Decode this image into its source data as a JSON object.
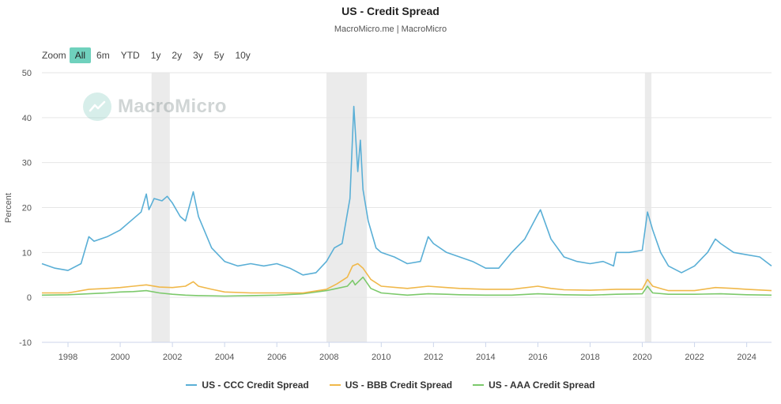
{
  "header": {
    "title": "US - Credit Spread",
    "subtitle": "MacroMicro.me | MacroMicro"
  },
  "zoom": {
    "label": "Zoom",
    "buttons": [
      "All",
      "6m",
      "YTD",
      "1y",
      "2y",
      "3y",
      "5y",
      "10y"
    ],
    "active": "All"
  },
  "watermark": {
    "text": "MacroMicro"
  },
  "colors": {
    "ccc": "#5aafd6",
    "bbb": "#f0b84a",
    "aaa": "#7cc96b",
    "shade": "#ebebeb",
    "accent": "#6fd1bd"
  },
  "chart_data": {
    "type": "line",
    "title": "US - Credit Spread",
    "ylabel": "Percent",
    "ylim": [
      -10,
      50
    ],
    "yticks": [
      -10,
      0,
      10,
      20,
      30,
      40,
      50
    ],
    "xlim": [
      1997,
      2024.95
    ],
    "xticks": [
      "1998",
      "2000",
      "2002",
      "2004",
      "2006",
      "2008",
      "2010",
      "2012",
      "2014",
      "2016",
      "2018",
      "2020",
      "2022",
      "2024"
    ],
    "grid": true,
    "legend_position": "bottom",
    "recession_bands": [
      [
        2001.2,
        2001.9
      ],
      [
        2007.9,
        2009.45
      ],
      [
        2020.1,
        2020.35
      ]
    ],
    "series": [
      {
        "name": "US - CCC Credit Spread",
        "x": [
          1997.0,
          1997.5,
          1998.0,
          1998.5,
          1998.8,
          1999.0,
          1999.5,
          2000.0,
          2000.5,
          2000.8,
          2001.0,
          2001.1,
          2001.3,
          2001.6,
          2001.8,
          2002.0,
          2002.3,
          2002.5,
          2002.8,
          2003.0,
          2003.5,
          2004.0,
          2004.5,
          2005.0,
          2005.5,
          2006.0,
          2006.5,
          2007.0,
          2007.5,
          2007.9,
          2008.2,
          2008.5,
          2008.8,
          2008.95,
          2009.1,
          2009.2,
          2009.3,
          2009.5,
          2009.8,
          2010.0,
          2010.5,
          2011.0,
          2011.5,
          2011.8,
          2012.0,
          2012.5,
          2013.0,
          2013.5,
          2014.0,
          2014.5,
          2015.0,
          2015.5,
          2016.0,
          2016.1,
          2016.5,
          2017.0,
          2017.5,
          2018.0,
          2018.5,
          2018.9,
          2019.0,
          2019.5,
          2020.0,
          2020.2,
          2020.4,
          2020.7,
          2021.0,
          2021.5,
          2022.0,
          2022.5,
          2022.8,
          2023.0,
          2023.5,
          2024.0,
          2024.5,
          2024.95
        ],
        "values": [
          7.5,
          6.5,
          6.0,
          7.5,
          13.5,
          12.5,
          13.5,
          15.0,
          17.5,
          19.0,
          23.0,
          19.5,
          22.0,
          21.5,
          22.5,
          21.0,
          18.0,
          17.0,
          23.5,
          18.0,
          11.0,
          8.0,
          7.0,
          7.5,
          7.0,
          7.5,
          6.5,
          5.0,
          5.5,
          8.0,
          11.0,
          12.0,
          22.0,
          42.5,
          28.0,
          35.0,
          24.0,
          17.0,
          11.0,
          10.0,
          9.0,
          7.5,
          8.0,
          13.5,
          12.0,
          10.0,
          9.0,
          8.0,
          6.5,
          6.5,
          10.0,
          13.0,
          18.5,
          19.5,
          13.0,
          9.0,
          8.0,
          7.5,
          8.0,
          7.0,
          10.0,
          10.0,
          10.5,
          19.0,
          15.0,
          10.0,
          7.0,
          5.5,
          7.0,
          10.0,
          13.0,
          12.0,
          10.0,
          9.5,
          9.0,
          7.0
        ]
      },
      {
        "name": "US - BBB Credit Spread",
        "x": [
          1997.0,
          1998.0,
          1998.8,
          1999.5,
          2000.0,
          2000.5,
          2001.0,
          2001.5,
          2002.0,
          2002.5,
          2002.8,
          2003.0,
          2003.5,
          2004.0,
          2005.0,
          2006.0,
          2007.0,
          2007.9,
          2008.3,
          2008.7,
          2008.9,
          2009.1,
          2009.3,
          2009.6,
          2010.0,
          2011.0,
          2011.8,
          2012.5,
          2013.0,
          2014.0,
          2015.0,
          2016.0,
          2016.5,
          2017.0,
          2018.0,
          2019.0,
          2020.0,
          2020.2,
          2020.4,
          2020.8,
          2021.0,
          2022.0,
          2022.8,
          2023.5,
          2024.0,
          2024.95
        ],
        "values": [
          1.0,
          1.0,
          1.8,
          2.0,
          2.2,
          2.5,
          2.8,
          2.3,
          2.2,
          2.5,
          3.5,
          2.5,
          1.8,
          1.2,
          1.0,
          1.0,
          1.0,
          1.8,
          3.0,
          4.5,
          7.0,
          7.5,
          6.5,
          4.0,
          2.5,
          2.0,
          2.5,
          2.2,
          2.0,
          1.8,
          1.8,
          2.5,
          2.0,
          1.7,
          1.6,
          1.8,
          1.8,
          4.0,
          2.5,
          1.8,
          1.5,
          1.5,
          2.2,
          2.0,
          1.8,
          1.5
        ]
      },
      {
        "name": "US - AAA Credit Spread",
        "x": [
          1997.0,
          1998.0,
          1998.8,
          1999.5,
          2000.0,
          2000.5,
          2001.0,
          2001.5,
          2002.0,
          2002.5,
          2003.0,
          2004.0,
          2005.0,
          2006.0,
          2007.0,
          2007.9,
          2008.3,
          2008.7,
          2008.9,
          2009.0,
          2009.3,
          2009.6,
          2010.0,
          2011.0,
          2011.8,
          2012.5,
          2013.0,
          2014.0,
          2015.0,
          2016.0,
          2017.0,
          2018.0,
          2019.0,
          2020.0,
          2020.2,
          2020.4,
          2021.0,
          2022.0,
          2023.0,
          2024.0,
          2024.95
        ],
        "values": [
          0.5,
          0.6,
          0.8,
          1.0,
          1.2,
          1.3,
          1.5,
          1.0,
          0.7,
          0.5,
          0.4,
          0.3,
          0.4,
          0.5,
          0.8,
          1.5,
          2.0,
          2.5,
          3.8,
          2.8,
          4.5,
          2.0,
          1.0,
          0.5,
          0.8,
          0.7,
          0.6,
          0.5,
          0.5,
          0.8,
          0.6,
          0.5,
          0.7,
          0.8,
          2.5,
          1.0,
          0.7,
          0.7,
          0.8,
          0.6,
          0.5
        ]
      }
    ]
  }
}
